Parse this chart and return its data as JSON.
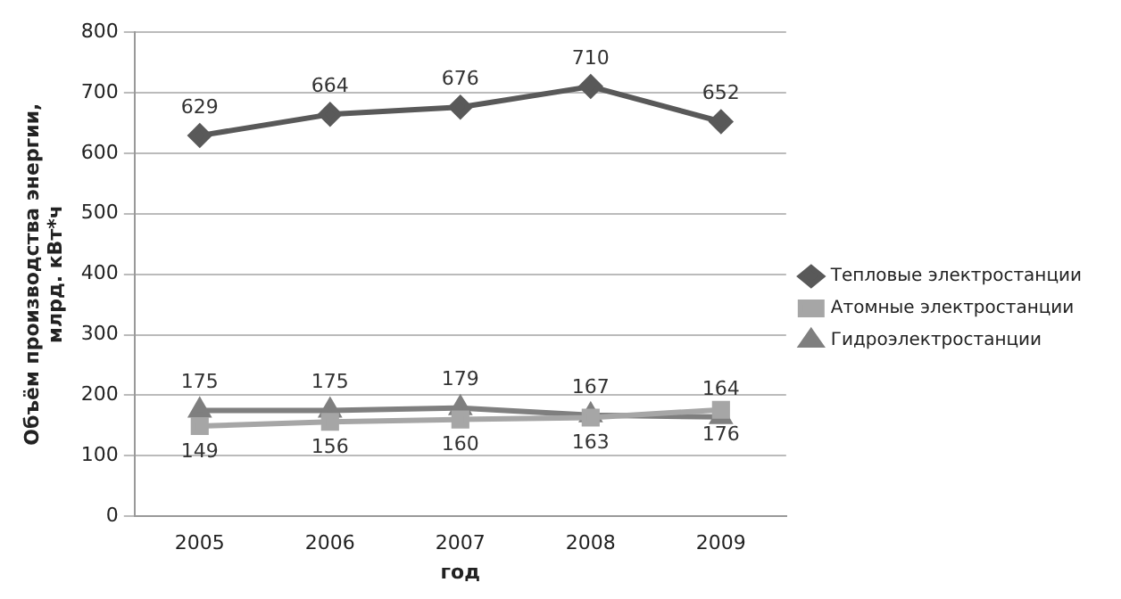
{
  "chart_data": {
    "type": "line",
    "xlabel": "год",
    "ylabel": "Объём производства энергии,\nмлрд. кВт*ч",
    "categories": [
      "2005",
      "2006",
      "2007",
      "2008",
      "2009"
    ],
    "series": [
      {
        "name": "Тепловые электростанции",
        "color": "#595959",
        "values": [
          629,
          664,
          676,
          710,
          652
        ],
        "marker": "diamond"
      },
      {
        "name": "Атомные электростанции",
        "color": "#a6a6a6",
        "values": [
          149,
          156,
          160,
          163,
          176
        ],
        "marker": "square"
      },
      {
        "name": "Гидроэлектростанции",
        "color": "#7f7f7f",
        "values": [
          175,
          175,
          179,
          167,
          164
        ],
        "marker": "triangle"
      }
    ],
    "ylim": [
      0,
      800
    ],
    "yticks": [
      0,
      100,
      200,
      300,
      400,
      500,
      600,
      700,
      800
    ],
    "grid": "y",
    "legend": "right",
    "data_labels": true
  }
}
